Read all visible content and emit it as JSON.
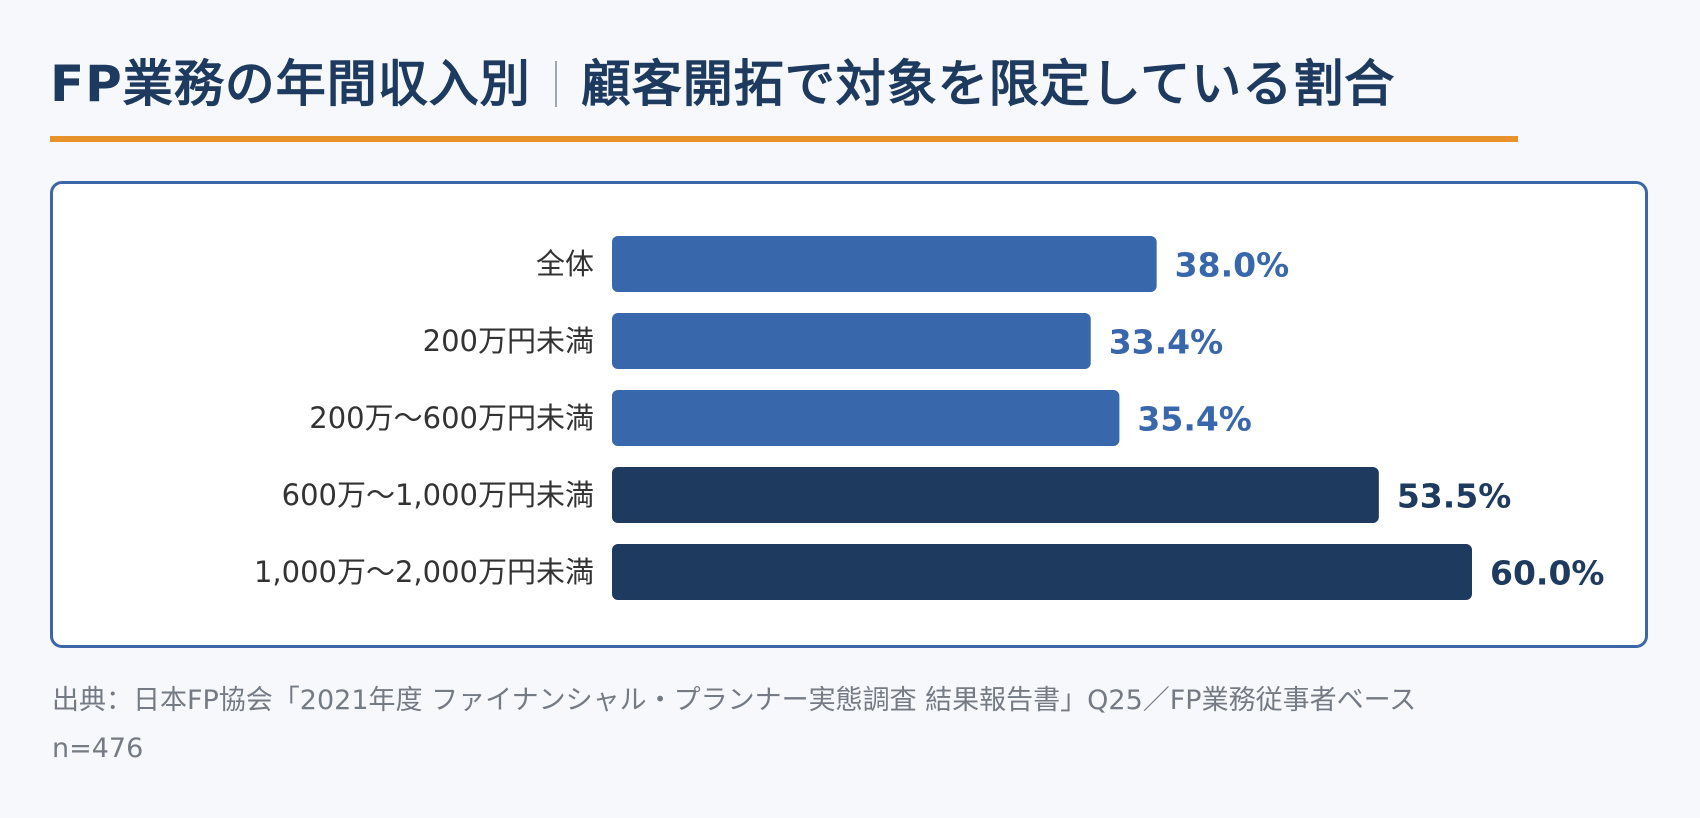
{
  "title": {
    "part1": "FP業務の年間収入別",
    "part2": "顧客開拓で対象を限定している割合"
  },
  "colors": {
    "title": "#1e3a5f",
    "accent_underline": "#e8922a",
    "frame": "#3b67a8",
    "bar_light": "#3867ab",
    "bar_dark": "#1f3a5f"
  },
  "chart_data": {
    "type": "bar",
    "orientation": "horizontal",
    "categories": [
      "全体",
      "200万円未満",
      "200万〜600万円未満",
      "600万〜1,000万円未満",
      "1,000万〜2,000万円未満"
    ],
    "values": [
      38.0,
      33.4,
      35.4,
      53.5,
      60.0
    ],
    "value_labels": [
      "38.0%",
      "33.4%",
      "35.4%",
      "53.5%",
      "60.0%"
    ],
    "bar_shades": [
      "light",
      "light",
      "light",
      "dark",
      "dark"
    ],
    "unit": "%",
    "xlim": [
      0,
      60
    ],
    "grid": false,
    "legend": "none"
  },
  "source": {
    "line1": "出典：日本FP協会「2021年度 ファイナンシャル・プランナー実態調査 結果報告書」Q25／FP業務従事者ベース",
    "line2": "n=476"
  }
}
